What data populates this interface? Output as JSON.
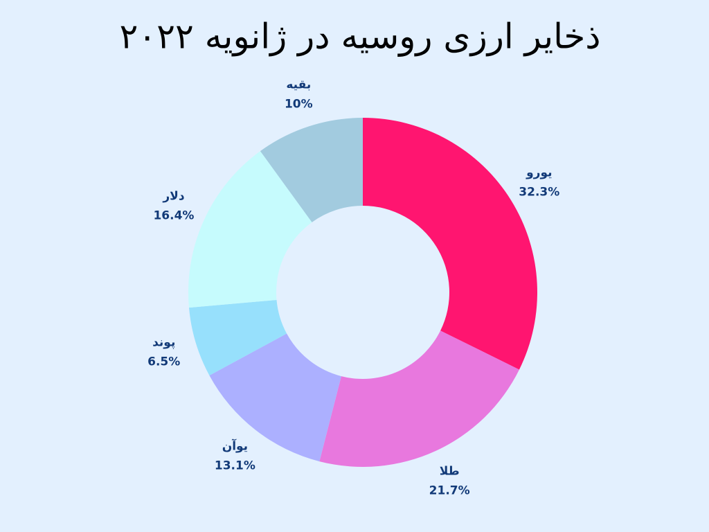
{
  "chart_data": {
    "type": "pie",
    "title": "ذخایر ارزی روسیه در ژانویه ۲۰۲۲",
    "categories": [
      "یورو",
      "طلا",
      "یوآن",
      "پوند",
      "دلار",
      "بقیه"
    ],
    "values": [
      32.3,
      21.7,
      13.1,
      6.5,
      16.4,
      10
    ],
    "value_labels": [
      "32.3%",
      "21.7%",
      "13.1%",
      "6.5%",
      "16.4%",
      "10%"
    ],
    "colors": [
      "#ff1570",
      "#e878de",
      "#acb0ff",
      "#97e0fc",
      "#c6fbfd",
      "#a2cbdf"
    ]
  }
}
